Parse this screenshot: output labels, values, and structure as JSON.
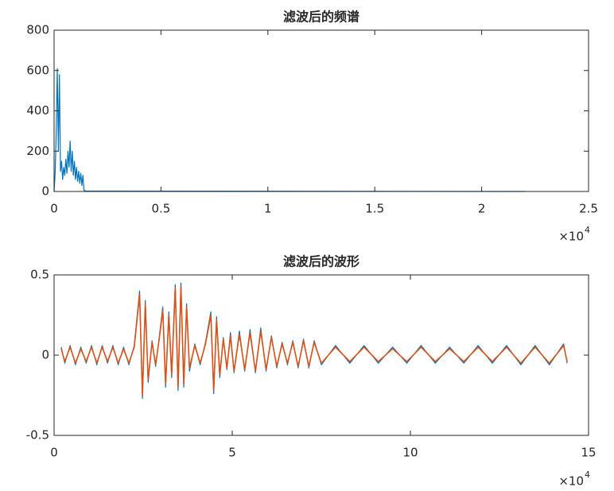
{
  "chart_data": [
    {
      "type": "line",
      "title": "滤波后的频谱",
      "x": [
        0,
        50,
        100,
        150,
        200,
        250,
        300,
        350,
        400,
        450,
        500,
        550,
        600,
        650,
        700,
        750,
        800,
        850,
        900,
        950,
        1000,
        1050,
        1100,
        1150,
        1200,
        1250,
        1300,
        1350,
        1400,
        1500,
        22050
      ],
      "series": [
        {
          "color": "#0072bd",
          "values": [
            0,
            90,
            300,
            610,
            200,
            580,
            100,
            150,
            60,
            120,
            80,
            160,
            90,
            200,
            120,
            250,
            100,
            200,
            80,
            150,
            60,
            120,
            50,
            100,
            40,
            90,
            30,
            80,
            5,
            2,
            0
          ]
        }
      ],
      "xlim": [
        0,
        25000
      ],
      "xticks": [
        0,
        {
          "value": 5000,
          "label": "0.5"
        },
        {
          "value": 10000,
          "label": "1"
        },
        {
          "value": 15000,
          "label": "1.5"
        },
        {
          "value": 20000,
          "label": "2"
        },
        {
          "value": 25000,
          "label": "2.5"
        }
      ],
      "x_exponent": {
        "base": "×10",
        "power": "4"
      },
      "ylim": [
        0,
        800
      ],
      "yticks": [
        0,
        200,
        400,
        600,
        800
      ],
      "grid": false
    },
    {
      "type": "line",
      "title": "滤波后的波形",
      "x": [
        2000,
        3000,
        4500,
        6000,
        7500,
        9000,
        10500,
        12000,
        13500,
        15000,
        16500,
        18000,
        19500,
        21000,
        22500,
        24000,
        24800,
        25600,
        26400,
        27500,
        28500,
        29500,
        30500,
        31300,
        32200,
        33000,
        34000,
        34800,
        35600,
        36400,
        37200,
        38000,
        39500,
        41000,
        42500,
        44000,
        44800,
        45600,
        46500,
        47500,
        48500,
        49500,
        50500,
        52000,
        53500,
        55000,
        56500,
        58000,
        59500,
        61000,
        62500,
        64000,
        65500,
        67000,
        68500,
        70000,
        71500,
        73000,
        75000,
        79000,
        83000,
        87000,
        91000,
        95000,
        99000,
        103000,
        107000,
        111000,
        115000,
        119000,
        123000,
        127000,
        131000,
        135000,
        139000,
        143000,
        144000
      ],
      "series": [
        {
          "color": "#0072bd",
          "values": [
            0.05,
            -0.05,
            0.06,
            -0.06,
            0.05,
            -0.05,
            0.06,
            -0.06,
            0.06,
            -0.05,
            0.06,
            -0.06,
            0.05,
            -0.06,
            0.06,
            0.4,
            -0.27,
            0.34,
            -0.17,
            0.09,
            -0.07,
            0.11,
            0.3,
            -0.2,
            0.27,
            -0.14,
            0.44,
            -0.22,
            0.45,
            -0.2,
            0.32,
            -0.1,
            0.07,
            -0.06,
            0.08,
            0.27,
            -0.24,
            0.24,
            -0.14,
            0.11,
            -0.09,
            0.14,
            -0.11,
            0.15,
            -0.1,
            0.16,
            -0.11,
            0.17,
            -0.1,
            0.12,
            -0.08,
            0.08,
            -0.06,
            0.09,
            -0.08,
            0.1,
            -0.08,
            0.09,
            -0.06,
            0.06,
            -0.05,
            0.06,
            -0.05,
            0.05,
            -0.05,
            0.06,
            -0.05,
            0.05,
            -0.05,
            0.06,
            -0.05,
            0.06,
            -0.06,
            0.06,
            -0.06,
            0.07,
            -0.05
          ]
        },
        {
          "color": "#d95319",
          "values": [
            0.04,
            -0.04,
            0.05,
            -0.05,
            0.04,
            -0.04,
            0.05,
            -0.05,
            0.05,
            -0.04,
            0.05,
            -0.05,
            0.04,
            -0.05,
            0.05,
            0.38,
            -0.25,
            0.32,
            -0.15,
            0.08,
            -0.06,
            0.1,
            0.28,
            -0.18,
            0.25,
            -0.12,
            0.42,
            -0.2,
            0.43,
            -0.18,
            0.3,
            -0.08,
            0.06,
            -0.05,
            0.07,
            0.25,
            -0.22,
            0.22,
            -0.12,
            0.1,
            -0.08,
            0.12,
            -0.1,
            0.13,
            -0.09,
            0.14,
            -0.1,
            0.15,
            -0.09,
            0.11,
            -0.07,
            0.07,
            -0.05,
            0.08,
            -0.07,
            0.09,
            -0.07,
            0.08,
            -0.05,
            0.05,
            -0.04,
            0.05,
            -0.04,
            0.04,
            -0.04,
            0.05,
            -0.04,
            0.04,
            -0.04,
            0.05,
            -0.04,
            0.05,
            -0.05,
            0.05,
            -0.05,
            0.06,
            -0.04
          ]
        }
      ],
      "xlim": [
        0,
        150000
      ],
      "xticks": [
        0,
        {
          "value": 50000,
          "label": "5"
        },
        {
          "value": 100000,
          "label": "10"
        },
        {
          "value": 150000,
          "label": "15"
        }
      ],
      "x_exponent": {
        "base": "×10",
        "power": "4"
      },
      "ylim": [
        -0.5,
        0.5
      ],
      "yticks": [
        -0.5,
        0,
        0.5
      ],
      "grid": false
    }
  ]
}
